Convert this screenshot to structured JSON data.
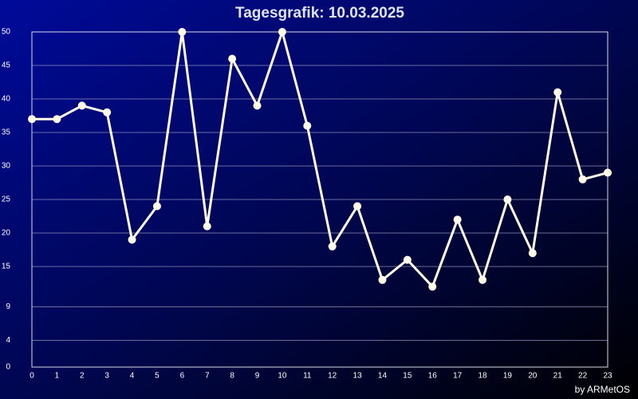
{
  "chart_data": {
    "type": "line",
    "title": "Tagesgrafik: 10.03.2025",
    "footer": "by ARMetOS",
    "x": [
      0,
      1,
      2,
      3,
      4,
      5,
      6,
      7,
      8,
      9,
      10,
      11,
      12,
      13,
      14,
      15,
      16,
      17,
      18,
      19,
      20,
      21,
      22,
      23
    ],
    "series": [
      {
        "color": "#fffbe6",
        "values": [
          37,
          37,
          39,
          38,
          19,
          24,
          50,
          21,
          46,
          39,
          50,
          36,
          18,
          24,
          13,
          16,
          12,
          22,
          13,
          25,
          17,
          41,
          28,
          29
        ]
      }
    ],
    "xlim": [
      0,
      23
    ],
    "xticks": [
      0,
      1,
      2,
      3,
      4,
      5,
      6,
      7,
      8,
      9,
      10,
      11,
      12,
      13,
      14,
      15,
      16,
      17,
      18,
      19,
      20,
      21,
      22,
      23
    ],
    "ylim": [
      0,
      50
    ],
    "yticks": [
      0,
      4,
      9,
      15,
      20,
      25,
      30,
      35,
      40,
      45,
      50
    ],
    "grid": true
  }
}
